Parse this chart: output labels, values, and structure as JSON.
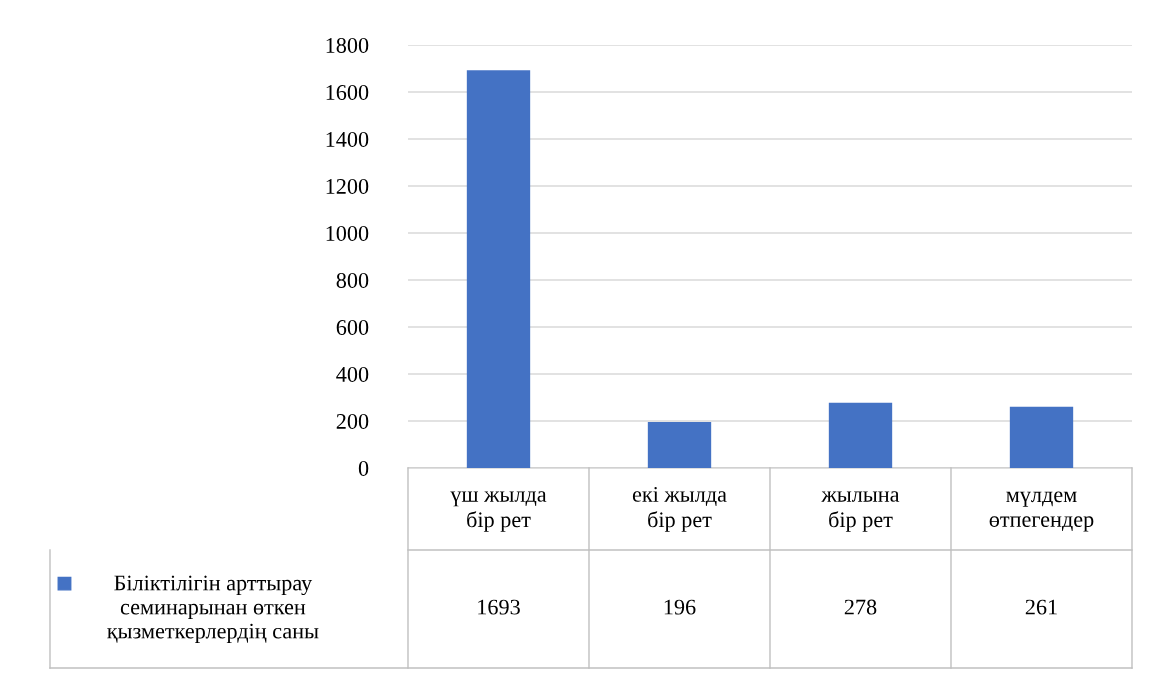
{
  "chart_data": {
    "type": "bar",
    "categories": [
      "үш жылда\nбір рет",
      "екі жылда\nбір рет",
      "жылына\nбір рет",
      "мүлдем\nөтпегендер"
    ],
    "series": [
      {
        "name": "Біліктілігін арттырау\nсеминарынан өткен\nқызметкерлердің саны",
        "color": "#4472c4",
        "values": [
          1693,
          196,
          278,
          261
        ]
      }
    ],
    "ylim": [
      0,
      1800
    ],
    "yticks": [
      0,
      200,
      400,
      600,
      800,
      1000,
      1200,
      1400,
      1600,
      1800
    ],
    "grid": "y",
    "data_labels": true,
    "tick_labels": "y",
    "legend": "bottom left"
  }
}
